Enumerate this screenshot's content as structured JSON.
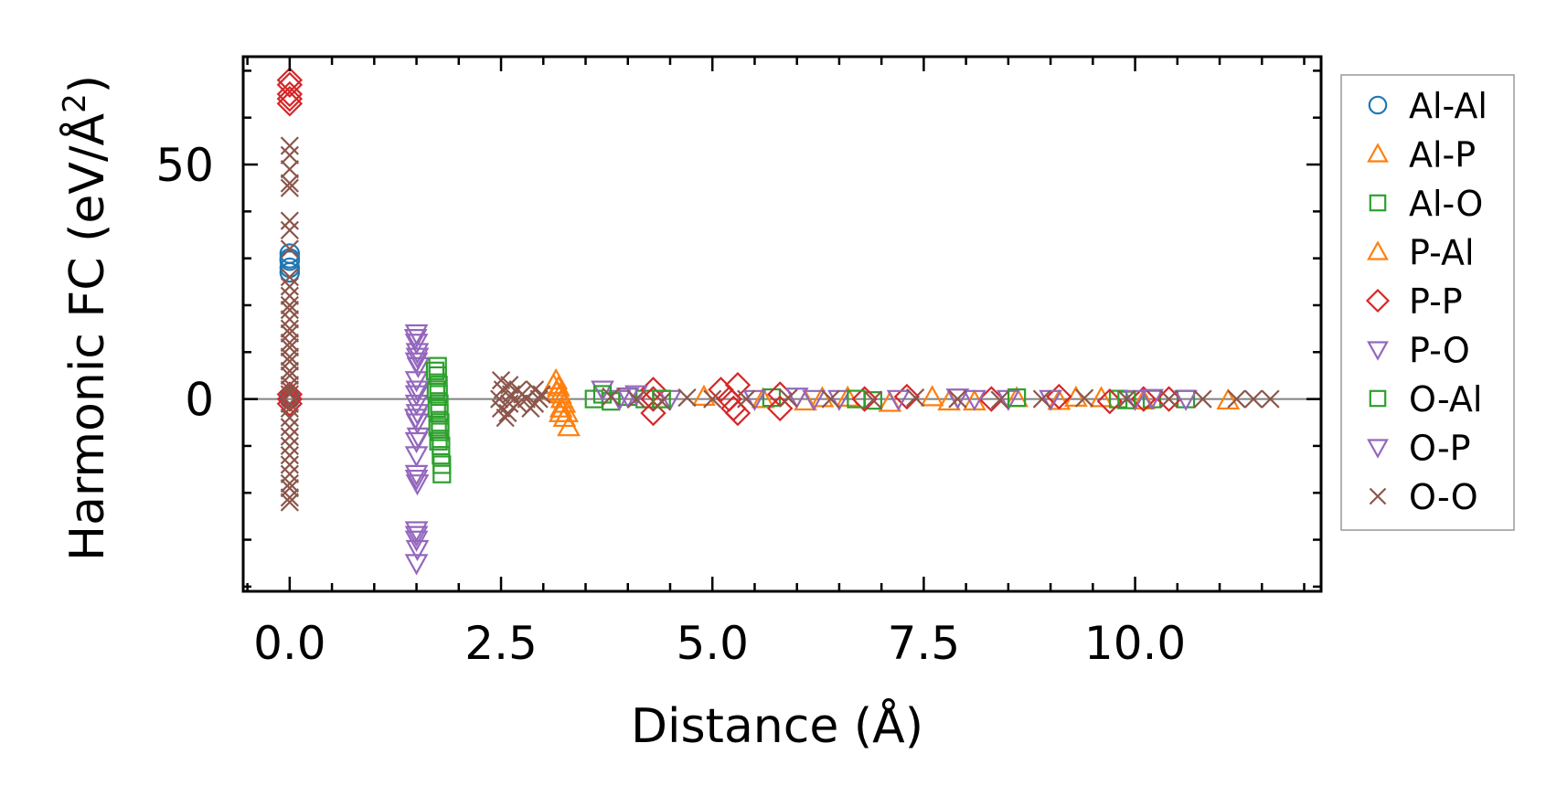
{
  "chart_data": {
    "type": "scatter",
    "title": "",
    "xlabel": "Distance (Å)",
    "ylabel_main": "Harmonic FC (eV/Å",
    "ylabel_sup": "2",
    "ylabel_close": ")",
    "xlim": [
      -0.55,
      12.2
    ],
    "ylim": [
      -41,
      73
    ],
    "xticks": [
      0.0,
      2.5,
      5.0,
      7.5,
      10.0
    ],
    "xtick_labels": [
      "0.0",
      "2.5",
      "5.0",
      "7.5",
      "10.0"
    ],
    "yticks": [
      0,
      50
    ],
    "ytick_labels": [
      "0",
      "50"
    ],
    "zero_line": true,
    "grid": false,
    "legend_position": "outside-right",
    "series": [
      {
        "name": "Al-Al",
        "marker": "circle",
        "color": "#1f77b4",
        "points": [
          [
            0,
            31
          ],
          [
            0,
            30
          ],
          [
            0,
            29.5
          ],
          [
            0,
            28
          ],
          [
            0,
            27
          ],
          [
            0,
            0.3
          ],
          [
            0,
            0
          ]
        ]
      },
      {
        "name": "Al-P",
        "marker": "triangle-up",
        "color": "#ff7f0e",
        "points": [
          [
            3.15,
            4
          ],
          [
            3.18,
            2.5
          ],
          [
            3.2,
            1
          ],
          [
            3.22,
            0
          ],
          [
            3.25,
            -1
          ],
          [
            3.2,
            -3
          ],
          [
            3.25,
            -4
          ],
          [
            3.3,
            -6
          ],
          [
            4.9,
            0.5
          ],
          [
            5.6,
            0
          ],
          [
            6.1,
            -0.5
          ],
          [
            6.6,
            0.3
          ],
          [
            7.1,
            -0.8
          ],
          [
            7.6,
            0.4
          ],
          [
            8.1,
            -0.5
          ],
          [
            8.6,
            0.2
          ],
          [
            9.1,
            -0.4
          ],
          [
            9.6,
            0.2
          ],
          [
            10.1,
            -0.3
          ],
          [
            11.1,
            -0.3
          ]
        ]
      },
      {
        "name": "Al-O",
        "marker": "square",
        "color": "#2ca02c",
        "points": [
          [
            1.75,
            7
          ],
          [
            1.75,
            5
          ],
          [
            1.76,
            3
          ],
          [
            1.76,
            1
          ],
          [
            1.77,
            -1
          ],
          [
            1.77,
            -3
          ],
          [
            1.78,
            -5
          ],
          [
            1.78,
            -7
          ],
          [
            1.79,
            -10
          ],
          [
            1.79,
            -12
          ],
          [
            1.8,
            -14
          ],
          [
            1.8,
            -16
          ],
          [
            3.6,
            0
          ],
          [
            3.8,
            -0.5
          ],
          [
            4.0,
            0.5
          ],
          [
            4.2,
            0
          ],
          [
            5.7,
            0.3
          ],
          [
            6.9,
            -0.3
          ],
          [
            9.8,
            0
          ],
          [
            10.2,
            0
          ],
          [
            10.6,
            0
          ]
        ]
      },
      {
        "name": "P-Al",
        "marker": "triangle-up",
        "color": "#ff7f0e",
        "points": [
          [
            3.12,
            3
          ],
          [
            3.16,
            1.5
          ],
          [
            3.21,
            -2
          ],
          [
            3.28,
            -3
          ],
          [
            6.3,
            0.2
          ],
          [
            7.8,
            -0.5
          ],
          [
            9.3,
            0.3
          ]
        ]
      },
      {
        "name": "P-P",
        "marker": "diamond",
        "color": "#d62728",
        "points": [
          [
            0,
            68
          ],
          [
            0,
            67
          ],
          [
            0,
            65
          ],
          [
            0,
            64
          ],
          [
            0,
            63
          ],
          [
            0,
            1
          ],
          [
            0,
            0
          ],
          [
            0,
            -1
          ],
          [
            4.3,
            2
          ],
          [
            4.3,
            0
          ],
          [
            4.3,
            -3
          ],
          [
            5.1,
            2
          ],
          [
            5.2,
            0
          ],
          [
            5.25,
            -2
          ],
          [
            5.3,
            3
          ],
          [
            5.3,
            -3
          ],
          [
            5.8,
            -2
          ],
          [
            5.8,
            1
          ],
          [
            6.8,
            0
          ],
          [
            7.3,
            0.5
          ],
          [
            8.3,
            0
          ],
          [
            9.1,
            0.5
          ],
          [
            9.7,
            -0.5
          ],
          [
            10.1,
            0
          ],
          [
            10.4,
            0
          ]
        ]
      },
      {
        "name": "P-O",
        "marker": "triangle-down",
        "color": "#9467bd",
        "points": [
          [
            1.5,
            14
          ],
          [
            1.5,
            12
          ],
          [
            1.51,
            10
          ],
          [
            1.51,
            9
          ],
          [
            1.52,
            7
          ],
          [
            1.5,
            4
          ],
          [
            1.5,
            1
          ],
          [
            1.5,
            -1
          ],
          [
            1.51,
            -3
          ],
          [
            1.51,
            -5
          ],
          [
            1.52,
            -8
          ],
          [
            1.5,
            -12
          ],
          [
            1.5,
            -16
          ],
          [
            1.51,
            -18
          ],
          [
            1.5,
            -28
          ],
          [
            1.5,
            -30
          ],
          [
            1.51,
            -32
          ],
          [
            1.5,
            -35
          ],
          [
            3.7,
            2
          ],
          [
            3.9,
            0
          ],
          [
            4.1,
            1
          ],
          [
            4.5,
            0
          ],
          [
            5.5,
            0
          ],
          [
            6.0,
            0.5
          ],
          [
            6.5,
            0
          ],
          [
            7.2,
            0
          ],
          [
            7.9,
            0.3
          ],
          [
            8.5,
            0
          ],
          [
            9.0,
            0
          ],
          [
            10.2,
            0.2
          ],
          [
            10.6,
            0
          ]
        ]
      },
      {
        "name": "O-Al",
        "marker": "square",
        "color": "#2ca02c",
        "points": [
          [
            1.72,
            6
          ],
          [
            1.73,
            2
          ],
          [
            1.74,
            -2
          ],
          [
            1.75,
            -6
          ],
          [
            1.76,
            -9
          ],
          [
            3.7,
            1
          ],
          [
            4.4,
            0
          ],
          [
            6.7,
            0
          ],
          [
            8.6,
            0.3
          ],
          [
            9.9,
            -0.2
          ]
        ]
      },
      {
        "name": "O-P",
        "marker": "triangle-down",
        "color": "#9467bd",
        "points": [
          [
            1.49,
            13
          ],
          [
            1.5,
            8
          ],
          [
            1.51,
            2
          ],
          [
            1.49,
            -4
          ],
          [
            1.5,
            -9
          ],
          [
            1.5,
            -17
          ],
          [
            1.5,
            -29
          ],
          [
            4.0,
            0.5
          ],
          [
            6.2,
            0
          ],
          [
            8.1,
            0
          ],
          [
            10.0,
            0
          ]
        ]
      },
      {
        "name": "O-O",
        "marker": "x",
        "color": "#8c564b",
        "points": [
          [
            0,
            54
          ],
          [
            0,
            52
          ],
          [
            0,
            49
          ],
          [
            0,
            46
          ],
          [
            0,
            45
          ],
          [
            0,
            38
          ],
          [
            0,
            36
          ],
          [
            0,
            32
          ],
          [
            0,
            26
          ],
          [
            0,
            24
          ],
          [
            0,
            22
          ],
          [
            0,
            20
          ],
          [
            0,
            19
          ],
          [
            0,
            17
          ],
          [
            0,
            15
          ],
          [
            0,
            14
          ],
          [
            0,
            12
          ],
          [
            0,
            11
          ],
          [
            0,
            9
          ],
          [
            0,
            8
          ],
          [
            0,
            6
          ],
          [
            0,
            5
          ],
          [
            0,
            3
          ],
          [
            0,
            2
          ],
          [
            0,
            1
          ],
          [
            0,
            -1
          ],
          [
            0,
            -2
          ],
          [
            0,
            -4
          ],
          [
            0,
            -6
          ],
          [
            0,
            -8
          ],
          [
            0,
            -10
          ],
          [
            0,
            -12
          ],
          [
            0,
            -14
          ],
          [
            0,
            -16
          ],
          [
            0,
            -18
          ],
          [
            0,
            -19
          ],
          [
            0,
            -21
          ],
          [
            0,
            -22
          ],
          [
            2.5,
            4
          ],
          [
            2.52,
            2
          ],
          [
            2.48,
            0
          ],
          [
            2.5,
            -2
          ],
          [
            2.55,
            -4
          ],
          [
            2.6,
            3
          ],
          [
            2.62,
            1
          ],
          [
            2.6,
            -1
          ],
          [
            2.58,
            -3
          ],
          [
            2.7,
            2
          ],
          [
            2.7,
            -1
          ],
          [
            2.75,
            1
          ],
          [
            2.8,
            0
          ],
          [
            2.85,
            -2
          ],
          [
            2.9,
            2
          ],
          [
            2.9,
            -1
          ],
          [
            2.95,
            0
          ],
          [
            2.98,
            1
          ],
          [
            3.8,
            0.5
          ],
          [
            4.1,
            0
          ],
          [
            4.4,
            -0.5
          ],
          [
            4.7,
            0.3
          ],
          [
            5.0,
            0
          ],
          [
            5.4,
            0
          ],
          [
            5.9,
            0.2
          ],
          [
            6.4,
            0
          ],
          [
            6.9,
            -0.2
          ],
          [
            7.4,
            0.3
          ],
          [
            7.9,
            0
          ],
          [
            8.4,
            -0.2
          ],
          [
            8.9,
            0
          ],
          [
            9.4,
            0.2
          ],
          [
            9.9,
            0
          ],
          [
            10.4,
            0
          ],
          [
            10.8,
            0
          ],
          [
            11.2,
            0
          ],
          [
            11.4,
            0
          ],
          [
            11.6,
            0
          ]
        ]
      }
    ]
  }
}
